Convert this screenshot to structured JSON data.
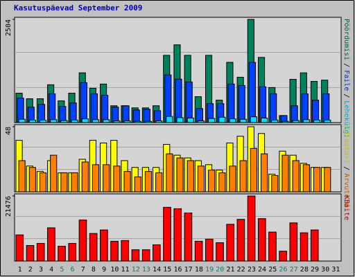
{
  "chart_data": [
    {
      "type": "bar",
      "title": "Kasutuspäevad September 2009",
      "ylim": [
        0,
        2504
      ],
      "yticks": [
        2504
      ],
      "legend_separator": "/",
      "series": [
        {
          "name": "Pöördumisi",
          "color": "#00805c",
          "values": [
            714,
            578,
            578,
            918,
            527,
            714,
            1207,
            833,
            935,
            408,
            408,
            357,
            357,
            408,
            1632,
            1887,
            1632,
            629,
            1632,
            544,
            1462,
            1100,
            2504,
            1581,
            850,
            170,
            1050,
            1207,
            1000,
            1030,
            null
          ]
        },
        {
          "name": "Faile",
          "color": "#0040ff",
          "values": [
            595,
            374,
            442,
            697,
            391,
            476,
            969,
            697,
            663,
            374,
            408,
            306,
            323,
            289,
            1156,
            1054,
            986,
            340,
            459,
            459,
            935,
            900,
            1462,
            867,
            700,
            170,
            408,
            697,
            544,
            697,
            null
          ]
        },
        {
          "name": "Lehekülgi",
          "color": "#00e0ff",
          "values": [
            80,
            60,
            60,
            70,
            50,
            60,
            90,
            70,
            70,
            40,
            40,
            30,
            30,
            40,
            150,
            120,
            110,
            40,
            100,
            130,
            90,
            80,
            140,
            110,
            60,
            30,
            50,
            70,
            60,
            60,
            null
          ]
        }
      ]
    },
    {
      "type": "bar",
      "ylim": [
        0,
        48
      ],
      "yticks": [
        48
      ],
      "legend_separator": "/",
      "series": [
        {
          "name": "Külastusi",
          "color": "#ffff00",
          "values": [
            38,
            19,
            15,
            23,
            14,
            14,
            24,
            38,
            36,
            38,
            23,
            18,
            18,
            18,
            35,
            27,
            25,
            23,
            20,
            16,
            36,
            41,
            48,
            43,
            13,
            30,
            27,
            21,
            18,
            18,
            null
          ]
        },
        {
          "name": "Arvuteid",
          "color": "#ff8000",
          "values": [
            23,
            18,
            14,
            27,
            14,
            14,
            22,
            20,
            20,
            19,
            15,
            11,
            15,
            14,
            28,
            25,
            23,
            19,
            16,
            14,
            19,
            23,
            32,
            28,
            12,
            27,
            23,
            20,
            18,
            18,
            null
          ]
        }
      ]
    },
    {
      "type": "bar",
      "ylim": [
        0,
        21476
      ],
      "yticks": [
        21476
      ],
      "categories": [
        "1",
        "2",
        "3",
        "4",
        "5",
        "6",
        "7",
        "8",
        "9",
        "10",
        "11",
        "12",
        "13",
        "14",
        "15",
        "16",
        "17",
        "18",
        "19",
        "20",
        "21",
        "22",
        "23",
        "24",
        "25",
        "26",
        "27",
        "28",
        "29",
        "30",
        "31"
      ],
      "category_colors": [
        "#000000",
        "#000000",
        "#000000",
        "#000000",
        "#008080",
        "#008080",
        "#000000",
        "#000000",
        "#000000",
        "#000000",
        "#000000",
        "#008080",
        "#008080",
        "#000000",
        "#000000",
        "#000000",
        "#000000",
        "#000000",
        "#008080",
        "#008080",
        "#000000",
        "#000000",
        "#000000",
        "#000000",
        "#000000",
        "#008080",
        "#008080",
        "#000000",
        "#000000",
        "#000000",
        "#000000"
      ],
      "series": [
        {
          "name": "KBaite",
          "color": "#ff0000",
          "values": [
            8636,
            5135,
            5835,
            10970,
            4901,
            5835,
            13537,
            9103,
            10270,
            6535,
            6769,
            3734,
            3734,
            5368,
            17738,
            17272,
            15871,
            6535,
            7235,
            6068,
            12137,
            13771,
            21476,
            14004,
            9569,
            3268,
            12604,
            9336,
            10270,
            null,
            null
          ]
        }
      ]
    }
  ]
}
